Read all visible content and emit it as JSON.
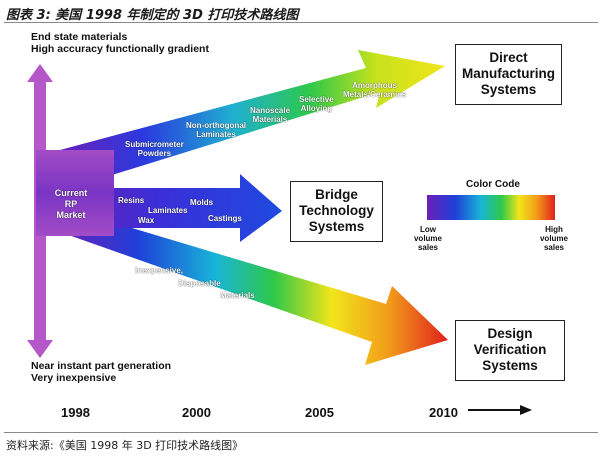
{
  "caption": "图表 3: 美国 1998 年制定的 3D 打印技术路线图",
  "source": "资料来源:《美国 1998 年 3D 打印技术路线图》",
  "top_label": {
    "line1": "End state materials",
    "line2": "High accuracy functionally gradient"
  },
  "bottom_label": {
    "line1": "Near instant part generation",
    "line2": "Very inexpensive"
  },
  "start_labels": [
    "Current",
    "RP",
    "Market"
  ],
  "boxes": {
    "direct": [
      "Direct",
      "Manufacturing",
      "Systems"
    ],
    "bridge": [
      "Bridge",
      "Technology",
      "Systems"
    ],
    "design": [
      "Design",
      "Verification",
      "Systems"
    ]
  },
  "upper_arrow_labels": {
    "submicrometer": [
      "Submicrometer",
      "Powders"
    ],
    "non_orthogonal": [
      "Non-orthogonal",
      "Laminates"
    ],
    "nanoscale": [
      "Nanoscale",
      "Materials"
    ],
    "selective": [
      "Selective",
      "Alloying"
    ],
    "amorphous": [
      "Amorphous",
      "Metals/Ceramics"
    ]
  },
  "middle_arrow_labels": {
    "resins": "Resins",
    "molds": "Molds",
    "laminates": "Laminates",
    "wax": "Wax",
    "castings": "Castings"
  },
  "lower_arrow_labels": {
    "inexpensive": "Inexpensive,",
    "disposable": "Disposable",
    "materials": "Materials"
  },
  "color_code": {
    "title": "Color Code",
    "low": [
      "Low",
      "volume",
      "sales"
    ],
    "high": [
      "High",
      "volume",
      "sales"
    ]
  },
  "years": [
    "1998",
    "2000",
    "2005",
    "2010"
  ],
  "colors": {
    "violet": "#6a1fb8",
    "blue": "#1f3fd8",
    "cyan": "#18b4d8",
    "green": "#2ec84a",
    "yellow": "#f2e51a",
    "orange": "#f29a1a",
    "red": "#e0201e",
    "shaft": "#b657c9"
  }
}
